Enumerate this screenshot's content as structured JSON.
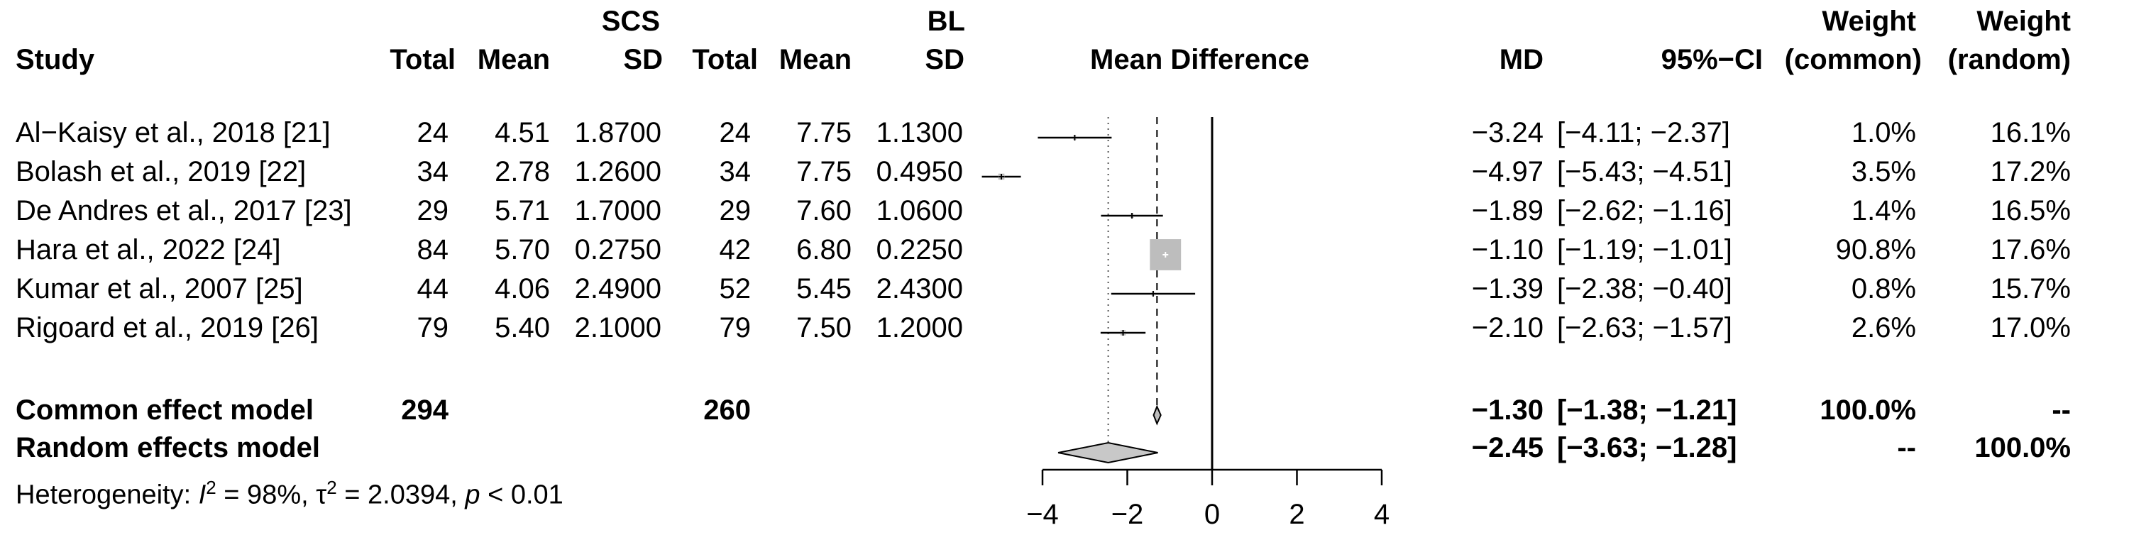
{
  "headers": {
    "study": "Study",
    "group1_name": "SCS",
    "group2_name": "BL",
    "total": "Total",
    "mean": "Mean",
    "sd": "SD",
    "plot_label": "Mean Difference",
    "md": "MD",
    "ci": "95%−CI",
    "weight": "Weight",
    "common": "(common)",
    "random": "(random)"
  },
  "studies": [
    {
      "name": "Al−Kaisy et al., 2018 [21]",
      "n1": "24",
      "mean1": "4.51",
      "sd1": "1.8700",
      "n2": "24",
      "mean2": "7.75",
      "sd2": "1.1300",
      "md": "−3.24",
      "ci": "[−4.11; −2.37]",
      "w_common": "1.0%",
      "w_random": "16.1%"
    },
    {
      "name": "Bolash et al., 2019 [22]",
      "n1": "34",
      "mean1": "2.78",
      "sd1": "1.2600",
      "n2": "34",
      "mean2": "7.75",
      "sd2": "0.4950",
      "md": "−4.97",
      "ci": "[−5.43; −4.51]",
      "w_common": "3.5%",
      "w_random": "17.2%"
    },
    {
      "name": "De Andres et al., 2017 [23]",
      "n1": "29",
      "mean1": "5.71",
      "sd1": "1.7000",
      "n2": "29",
      "mean2": "7.60",
      "sd2": "1.0600",
      "md": "−1.89",
      "ci": "[−2.62; −1.16]",
      "w_common": "1.4%",
      "w_random": "16.5%"
    },
    {
      "name": "Hara et al., 2022 [24]",
      "n1": "84",
      "mean1": "5.70",
      "sd1": "0.2750",
      "n2": "42",
      "mean2": "6.80",
      "sd2": "0.2250",
      "md": "−1.10",
      "ci": "[−1.19; −1.01]",
      "w_common": "90.8%",
      "w_random": "17.6%"
    },
    {
      "name": "Kumar  et al., 2007 [25]",
      "n1": "44",
      "mean1": "4.06",
      "sd1": "2.4900",
      "n2": "52",
      "mean2": "5.45",
      "sd2": "2.4300",
      "md": "−1.39",
      "ci": "[−2.38; −0.40]",
      "w_common": "0.8%",
      "w_random": "15.7%"
    },
    {
      "name": "Rigoard et al., 2019 [26]",
      "n1": "79",
      "mean1": "5.40",
      "sd1": "2.1000",
      "n2": "79",
      "mean2": "7.50",
      "sd2": "1.2000",
      "md": "−2.10",
      "ci": "[−2.63; −1.57]",
      "w_common": "2.6%",
      "w_random": "17.0%"
    }
  ],
  "common_model": {
    "name": "Common effect model",
    "n1": "294",
    "n2": "260",
    "md": "−1.30",
    "ci": "[−1.38; −1.21]",
    "w_common": "100.0%",
    "w_random": "--"
  },
  "random_model": {
    "name": "Random effects model",
    "md": "−2.45",
    "ci": "[−3.63; −1.28]",
    "w_common": "--",
    "w_random": "100.0%"
  },
  "heterogeneity": {
    "prefix": "Heterogeneity: ",
    "i2_symbol": "I",
    "i2": " = 98%, ",
    "tau_symbol": "τ",
    "tau2": " = 2.0394, ",
    "p_symbol": "p",
    "p": " < 0.01"
  },
  "chart_data": {
    "type": "forest",
    "xlim": [
      -4,
      4
    ],
    "x_ticks": [
      -4,
      -2,
      0,
      2,
      4
    ],
    "x_tick_labels": [
      "−4",
      "−2",
      "0",
      "2",
      "4"
    ],
    "null_line": 0,
    "studies": [
      {
        "name": "Al−Kaisy et al., 2018 [21]",
        "md": -3.24,
        "lower": -4.11,
        "upper": -2.37,
        "weight_common": 1.0
      },
      {
        "name": "Bolash et al., 2019 [22]",
        "md": -4.97,
        "lower": -5.43,
        "upper": -4.51,
        "weight_common": 3.5
      },
      {
        "name": "De Andres et al., 2017 [23]",
        "md": -1.89,
        "lower": -2.62,
        "upper": -1.16,
        "weight_common": 1.4
      },
      {
        "name": "Hara et al., 2022 [24]",
        "md": -1.1,
        "lower": -1.19,
        "upper": -1.01,
        "weight_common": 90.8
      },
      {
        "name": "Kumar  et al., 2007 [25]",
        "md": -1.39,
        "lower": -2.38,
        "upper": -0.4,
        "weight_common": 0.8
      },
      {
        "name": "Rigoard et al., 2019 [26]",
        "md": -2.1,
        "lower": -2.63,
        "upper": -1.57,
        "weight_common": 2.6
      }
    ],
    "common": {
      "md": -1.3,
      "lower": -1.38,
      "upper": -1.21
    },
    "random": {
      "md": -2.45,
      "lower": -3.63,
      "upper": -1.28
    },
    "colors": {
      "box": "#bdbdbd",
      "diamond_random": "#c8c8c8",
      "line": "#000000"
    }
  }
}
